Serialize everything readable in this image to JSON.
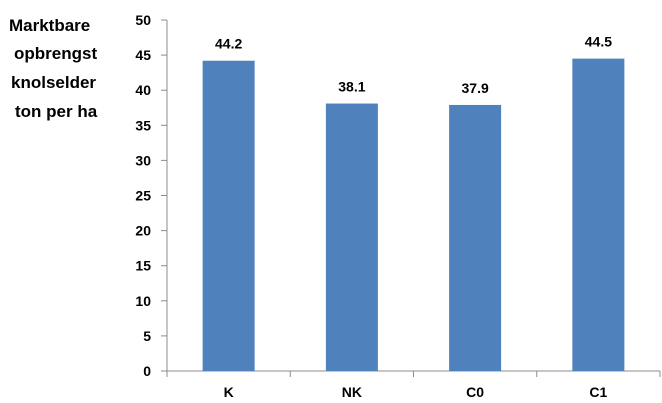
{
  "chart_data": {
    "type": "bar",
    "categories": [
      "K",
      "NK",
      "C0",
      "C1"
    ],
    "values": [
      44.2,
      38.1,
      37.9,
      44.5
    ],
    "data_labels": [
      "44.2",
      "38.1",
      "37.9",
      "44.5"
    ],
    "ylabel_lines": [
      "Marktbare",
      "opbrengst",
      "knolselder",
      "ton per ha"
    ],
    "ylim": [
      0,
      50
    ],
    "yticks": [
      0,
      5,
      10,
      15,
      20,
      25,
      30,
      35,
      40,
      45,
      50
    ],
    "bar_color": "#4f81bd",
    "grid": false,
    "legend": "none"
  }
}
